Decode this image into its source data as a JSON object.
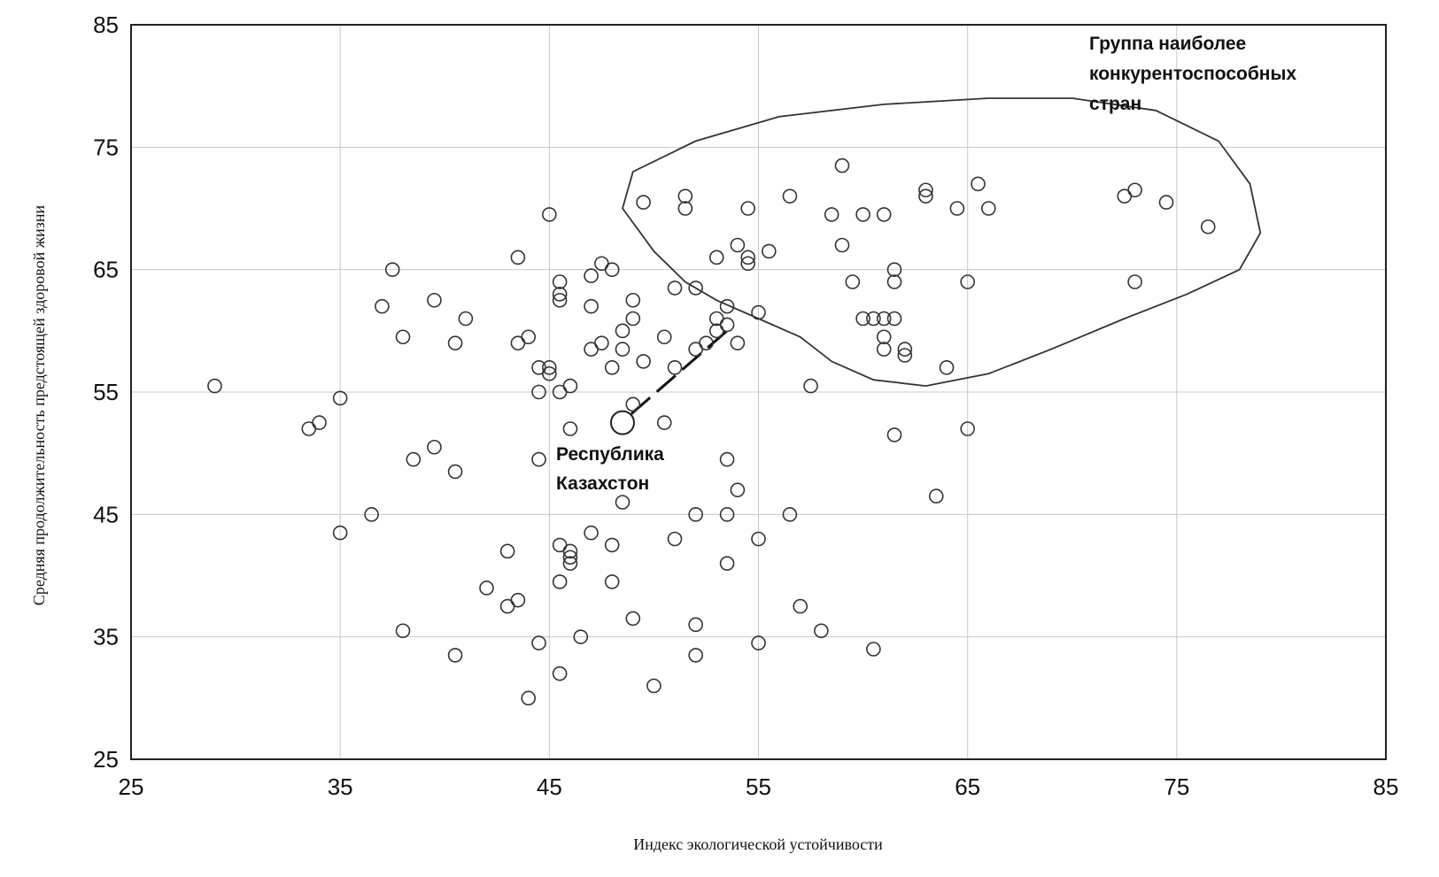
{
  "chart_data": {
    "type": "scatter",
    "title": "",
    "xlabel": "Индекс экологической устойчивости",
    "ylabel": "Средняя продолжительность предстоящей здоровой жизни",
    "xlim": [
      25,
      85
    ],
    "ylim": [
      25,
      85
    ],
    "xticks": [
      "25",
      "35",
      "45",
      "55",
      "65",
      "75",
      "85"
    ],
    "yticks": [
      "25",
      "35",
      "45",
      "55",
      "65",
      "75",
      "85"
    ],
    "grid": true,
    "annotations": [
      {
        "id": "group",
        "lines": [
          "Группа наиболее",
          "конкурентоспособных",
          "стран"
        ]
      },
      {
        "id": "kaz",
        "lines": [
          "Республика",
          "Казахстон"
        ]
      }
    ],
    "highlighted_point": {
      "label": "Республика Казахстон",
      "x": 48.5,
      "y": 52.5
    },
    "region": {
      "label": "Группа наиболее конкурентоспособных стран",
      "shape": "ellipse"
    },
    "points": [
      [
        29,
        55.5
      ],
      [
        33.5,
        52
      ],
      [
        34,
        52.5
      ],
      [
        35,
        54.5
      ],
      [
        35,
        43.5
      ],
      [
        36.5,
        45
      ],
      [
        37,
        62
      ],
      [
        37.5,
        65
      ],
      [
        38,
        59.5
      ],
      [
        38.5,
        49.5
      ],
      [
        38,
        35.5
      ],
      [
        39.5,
        62.5
      ],
      [
        39.5,
        50.5
      ],
      [
        40.5,
        59
      ],
      [
        41,
        61
      ],
      [
        40.5,
        48.5
      ],
      [
        40.5,
        33.5
      ],
      [
        42,
        39
      ],
      [
        43,
        42
      ],
      [
        43.5,
        66
      ],
      [
        43.5,
        59
      ],
      [
        43,
        37.5
      ],
      [
        43.5,
        38
      ],
      [
        44,
        30
      ],
      [
        44,
        59.5
      ],
      [
        44.5,
        57
      ],
      [
        44.5,
        55
      ],
      [
        44.5,
        49.5
      ],
      [
        44.5,
        34.5
      ],
      [
        45,
        69.5
      ],
      [
        45,
        57
      ],
      [
        45,
        56.5
      ],
      [
        45.5,
        64
      ],
      [
        45.5,
        63
      ],
      [
        45.5,
        62.5
      ],
      [
        45.5,
        55
      ],
      [
        45.5,
        42.5
      ],
      [
        45.5,
        39.5
      ],
      [
        45.5,
        32
      ],
      [
        46,
        52
      ],
      [
        46,
        42
      ],
      [
        46,
        41.5
      ],
      [
        46,
        41
      ],
      [
        46,
        55.5
      ],
      [
        46.5,
        35
      ],
      [
        47,
        58.5
      ],
      [
        47,
        62
      ],
      [
        47,
        43.5
      ],
      [
        47,
        64.5
      ],
      [
        47.5,
        59
      ],
      [
        47.5,
        65.5
      ],
      [
        48,
        65
      ],
      [
        48,
        57
      ],
      [
        48,
        42.5
      ],
      [
        48,
        39.5
      ],
      [
        48.5,
        46
      ],
      [
        48.5,
        58.5
      ],
      [
        48.5,
        60
      ],
      [
        49,
        62.5
      ],
      [
        49,
        61
      ],
      [
        49,
        54
      ],
      [
        49,
        36.5
      ],
      [
        49.5,
        57.5
      ],
      [
        49.5,
        70.5
      ],
      [
        50,
        31
      ],
      [
        50.5,
        59.5
      ],
      [
        50.5,
        52.5
      ],
      [
        51,
        63.5
      ],
      [
        51,
        57
      ],
      [
        51,
        43
      ],
      [
        51.5,
        70
      ],
      [
        51.5,
        71
      ],
      [
        52,
        63.5
      ],
      [
        52,
        58.5
      ],
      [
        52,
        45
      ],
      [
        52,
        33.5
      ],
      [
        52,
        36
      ],
      [
        52.5,
        59
      ],
      [
        53,
        61
      ],
      [
        53,
        66
      ],
      [
        53,
        60
      ],
      [
        53.5,
        62
      ],
      [
        53.5,
        60.5
      ],
      [
        53.5,
        49.5
      ],
      [
        53.5,
        45
      ],
      [
        53.5,
        41
      ],
      [
        54,
        59
      ],
      [
        54,
        67
      ],
      [
        54,
        47
      ],
      [
        54.5,
        65.5
      ],
      [
        54.5,
        66
      ],
      [
        54.5,
        70
      ],
      [
        55,
        61.5
      ],
      [
        55,
        43
      ],
      [
        55,
        34.5
      ],
      [
        55.5,
        66.5
      ],
      [
        56.5,
        71
      ],
      [
        56.5,
        45
      ],
      [
        57,
        37.5
      ],
      [
        57.5,
        55.5
      ],
      [
        58,
        35.5
      ],
      [
        58.5,
        69.5
      ],
      [
        59,
        73.5
      ],
      [
        59,
        67
      ],
      [
        59.5,
        64
      ],
      [
        60,
        61
      ],
      [
        60,
        69.5
      ],
      [
        60.5,
        61
      ],
      [
        60.5,
        34
      ],
      [
        61,
        59.5
      ],
      [
        61,
        58.5
      ],
      [
        61,
        61
      ],
      [
        61,
        69.5
      ],
      [
        61.5,
        65
      ],
      [
        61.5,
        64
      ],
      [
        61.5,
        61
      ],
      [
        61.5,
        51.5
      ],
      [
        62,
        58.5
      ],
      [
        62,
        58
      ],
      [
        63,
        71
      ],
      [
        63,
        71.5
      ],
      [
        63.5,
        46.5
      ],
      [
        64,
        57
      ],
      [
        64.5,
        70
      ],
      [
        65,
        64
      ],
      [
        65,
        52
      ],
      [
        65.5,
        72
      ],
      [
        66,
        70
      ],
      [
        72.5,
        71
      ],
      [
        73,
        71.5
      ],
      [
        73,
        64
      ],
      [
        74.5,
        70.5
      ],
      [
        76.5,
        68.5
      ]
    ]
  }
}
